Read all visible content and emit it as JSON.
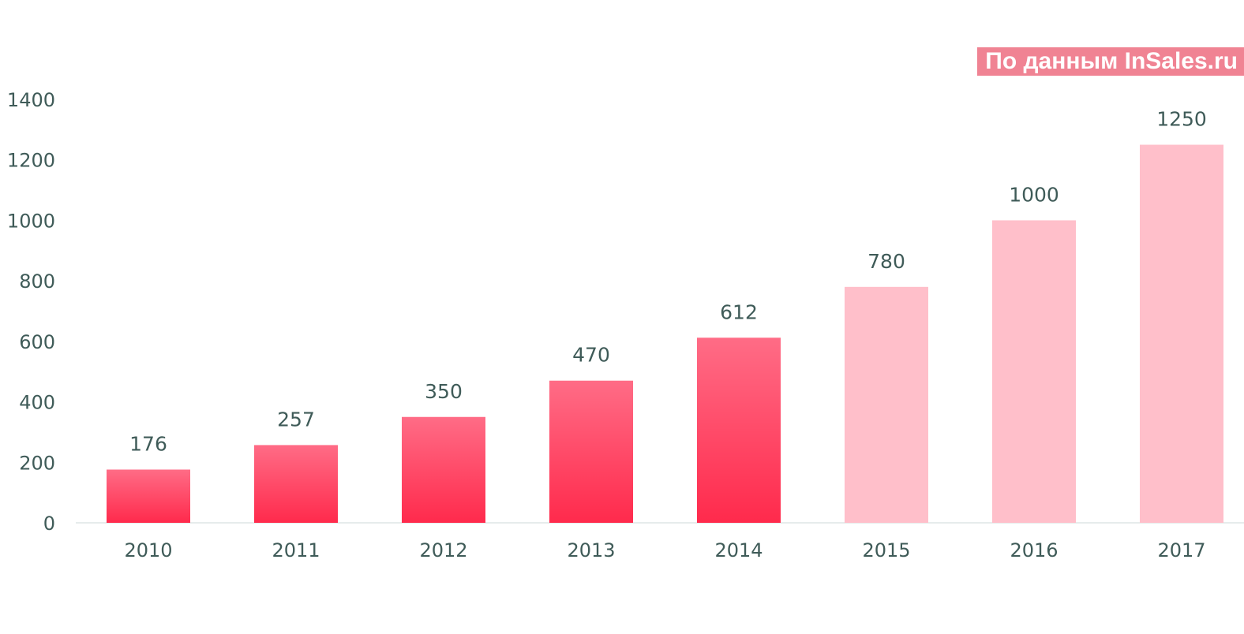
{
  "source_note": "По данным InSales.ru",
  "colors": {
    "actual_top": "#ff6c86",
    "actual_bottom": "#ff2a4c",
    "forecast": "#ffbfca",
    "axis_text": "#3f5b58",
    "axis_line": "#e6ecec",
    "badge_bg": "#f08393"
  },
  "chart_data": {
    "type": "bar",
    "title": "",
    "xlabel": "",
    "ylabel": "",
    "ylim": [
      0,
      1400
    ],
    "yticks": [
      0,
      200,
      400,
      600,
      800,
      1000,
      1200,
      1400
    ],
    "grid": false,
    "categories": [
      "2010",
      "2011",
      "2012",
      "2013",
      "2014",
      "2015",
      "2016",
      "2017"
    ],
    "values": [
      176,
      257,
      350,
      470,
      612,
      780,
      1000,
      1250
    ],
    "forecast_from_index": 5
  }
}
